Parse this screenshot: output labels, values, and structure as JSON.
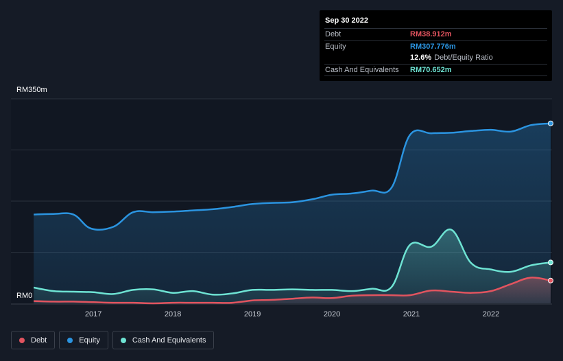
{
  "tooltip": {
    "date": "Sep 30 2022",
    "debt_label": "Debt",
    "debt_value": "RM38.912m",
    "equity_label": "Equity",
    "equity_value": "RM307.776m",
    "ratio_value": "12.6%",
    "ratio_label": "Debt/Equity Ratio",
    "cash_label": "Cash And Equivalents",
    "cash_value": "RM70.652m"
  },
  "legend": {
    "debt": "Debt",
    "equity": "Equity",
    "cash": "Cash And Equivalents"
  },
  "colors": {
    "debt": "#e2545f",
    "equity": "#2b94e0",
    "cash": "#6ee3d3",
    "background": "#151b26",
    "grid": "#2c333e"
  },
  "chart_data": {
    "type": "area",
    "ylim": [
      0,
      350
    ],
    "y_tick_labels": [
      "RM0",
      "RM350m"
    ],
    "x_tick_labels": [
      "2017",
      "2018",
      "2019",
      "2020",
      "2021",
      "2022"
    ],
    "x_tick_years": [
      2017,
      2018,
      2019,
      2020,
      2021,
      2022
    ],
    "xlim": [
      2016.24,
      2022.75
    ],
    "grid": true,
    "series": [
      {
        "name": "Equity",
        "x": [
          2016.25,
          2016.5,
          2016.75,
          2016.97,
          2017.25,
          2017.5,
          2017.75,
          2018.0,
          2018.25,
          2018.5,
          2018.75,
          2019.0,
          2019.25,
          2019.5,
          2019.75,
          2020.0,
          2020.25,
          2020.5,
          2020.75,
          2020.98,
          2021.25,
          2021.5,
          2021.75,
          2022.0,
          2022.25,
          2022.5,
          2022.75
        ],
        "values": [
          152,
          153,
          152,
          128,
          131,
          156,
          156,
          157,
          159,
          161,
          165,
          170,
          172,
          173,
          178,
          186,
          188,
          193,
          198,
          288,
          291,
          292,
          295,
          297,
          294,
          305,
          308
        ]
      },
      {
        "name": "Cash And Equivalents",
        "x": [
          2016.25,
          2016.5,
          2016.75,
          2017.0,
          2017.25,
          2017.5,
          2017.75,
          2018.0,
          2018.25,
          2018.5,
          2018.75,
          2019.0,
          2019.25,
          2019.5,
          2019.75,
          2020.0,
          2020.25,
          2020.5,
          2020.75,
          2020.98,
          2021.25,
          2021.5,
          2021.75,
          2022.0,
          2022.25,
          2022.5,
          2022.75
        ],
        "values": [
          27,
          21,
          20,
          19,
          16,
          23,
          24,
          18,
          21,
          15,
          17,
          23,
          23,
          24,
          23,
          23,
          21,
          25,
          28,
          100,
          97,
          126,
          69,
          58,
          54,
          65,
          70
        ]
      },
      {
        "name": "Debt",
        "x": [
          2016.25,
          2016.5,
          2016.75,
          2017.0,
          2017.25,
          2017.5,
          2017.75,
          2018.0,
          2018.25,
          2018.5,
          2018.75,
          2019.0,
          2019.25,
          2019.5,
          2019.75,
          2020.0,
          2020.25,
          2020.5,
          2020.75,
          2020.98,
          2021.25,
          2021.5,
          2021.75,
          2022.0,
          2022.25,
          2022.5,
          2022.75
        ],
        "values": [
          4,
          3,
          3,
          2,
          1,
          1,
          0,
          1,
          1,
          1,
          1,
          5,
          6,
          8,
          10,
          9,
          13,
          14,
          14,
          14,
          22,
          20,
          18,
          21,
          33,
          44,
          39
        ]
      }
    ]
  }
}
